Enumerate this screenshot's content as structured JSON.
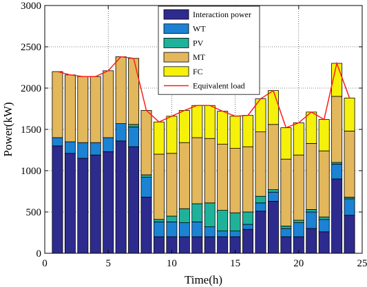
{
  "chart_data": {
    "type": "bar",
    "stacked": true,
    "xlabel": "Time(h)",
    "ylabel": "Power(kW)",
    "xlim": [
      0,
      25
    ],
    "ylim": [
      0,
      3000
    ],
    "xticks": [
      0,
      5,
      10,
      15,
      20,
      25
    ],
    "yticks": [
      0,
      500,
      1000,
      1500,
      2000,
      2500,
      3000
    ],
    "grid": true,
    "legend_position": "top-center",
    "x": [
      1,
      2,
      3,
      4,
      5,
      6,
      7,
      8,
      9,
      10,
      11,
      12,
      13,
      14,
      15,
      16,
      17,
      18,
      19,
      20,
      21,
      22,
      23,
      24
    ],
    "series": [
      {
        "name": "Interaction power",
        "color": "#2e2b8f",
        "values": [
          1300,
          1210,
          1150,
          1190,
          1230,
          1360,
          1290,
          680,
          200,
          200,
          200,
          200,
          200,
          200,
          200,
          290,
          510,
          630,
          200,
          200,
          300,
          260,
          900,
          460
        ]
      },
      {
        "name": "WT",
        "color": "#1b82d4",
        "values": [
          100,
          140,
          190,
          150,
          170,
          210,
          240,
          240,
          180,
          180,
          170,
          180,
          120,
          70,
          70,
          60,
          100,
          110,
          100,
          170,
          200,
          150,
          180,
          200
        ]
      },
      {
        "name": "PV",
        "color": "#1fb29a",
        "values": [
          0,
          0,
          0,
          0,
          0,
          0,
          30,
          30,
          30,
          70,
          170,
          220,
          290,
          250,
          220,
          150,
          80,
          30,
          30,
          30,
          30,
          30,
          20,
          20
        ]
      },
      {
        "name": "MT",
        "color": "#e3b75b",
        "values": [
          800,
          810,
          800,
          800,
          810,
          810,
          800,
          780,
          790,
          760,
          800,
          800,
          780,
          800,
          780,
          790,
          780,
          790,
          810,
          790,
          800,
          800,
          800,
          800
        ]
      },
      {
        "name": "FC",
        "color": "#f5f10a",
        "values": [
          0,
          0,
          0,
          0,
          0,
          0,
          0,
          0,
          390,
          450,
          390,
          390,
          400,
          400,
          390,
          380,
          400,
          410,
          380,
          390,
          380,
          380,
          400,
          400
        ]
      }
    ],
    "line": {
      "name": "Equivalent load",
      "color": "#ff1a1a",
      "values": [
        2200,
        2160,
        2140,
        2140,
        2210,
        2380,
        2360,
        1730,
        1590,
        1660,
        1730,
        1790,
        1790,
        1720,
        1660,
        1670,
        1870,
        1970,
        1520,
        1580,
        1710,
        1620,
        2300,
        1880
      ]
    }
  }
}
